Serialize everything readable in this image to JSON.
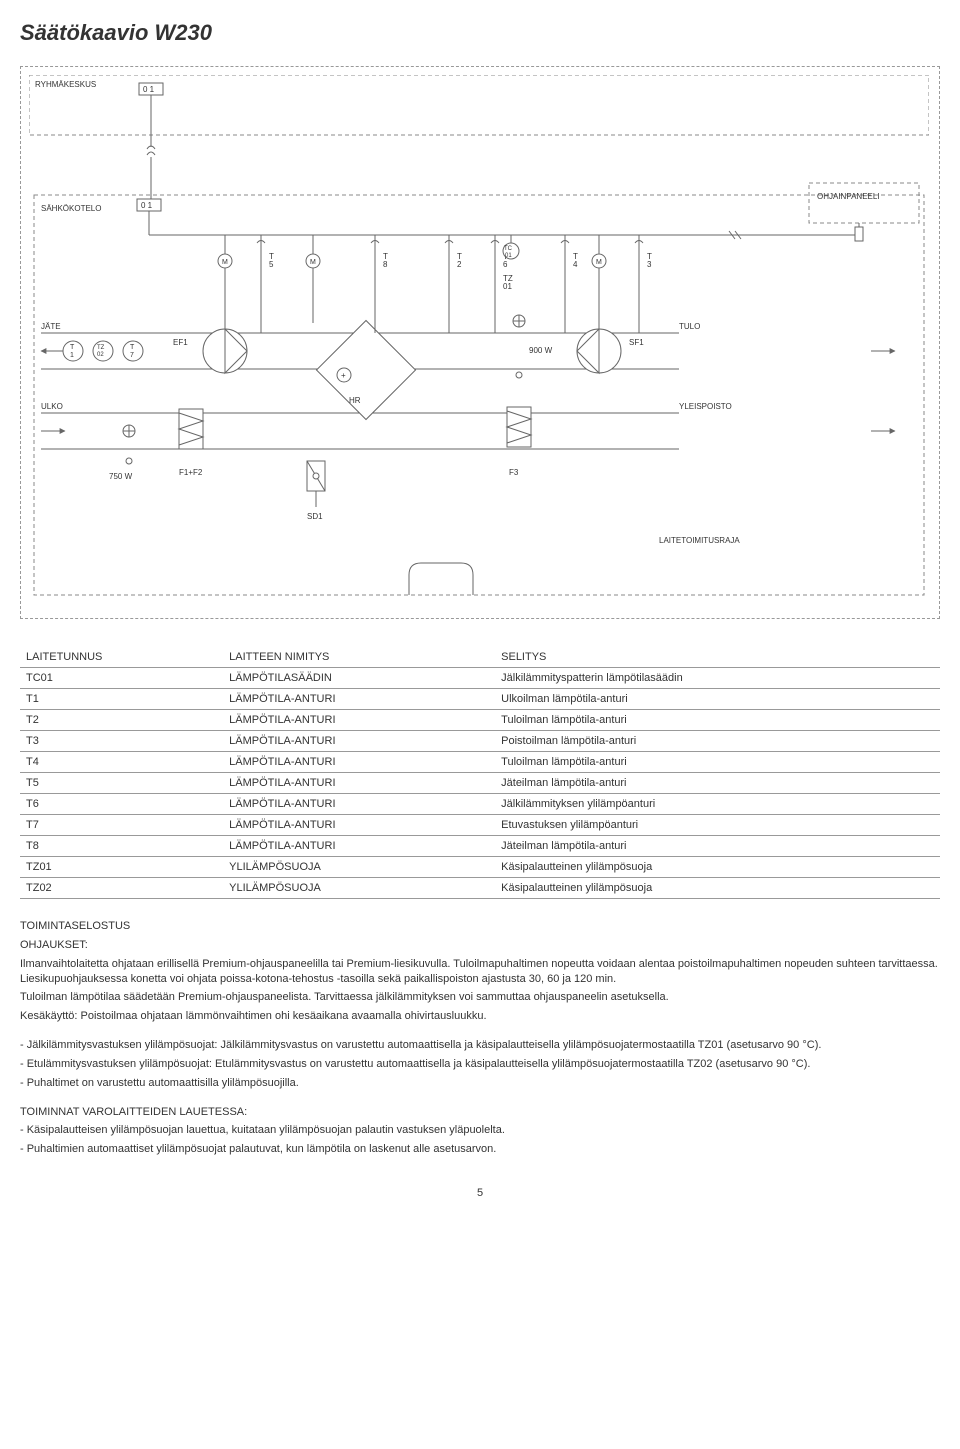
{
  "title": "Säätökaavio W230",
  "labels": {
    "ryhmakeskus": "RYHMÄKESKUS",
    "sahkokotelo": "SÄHKÖKOTELO",
    "ohjainpaneeli": "OHJAINPANEELI",
    "jate": "JÄTE",
    "tulo": "TULO",
    "ulko": "ULKO",
    "yleispoisto": "YLEISPOISTO",
    "ef1": "EF1",
    "sf1": "SF1",
    "f1f2": "F1+F2",
    "f3": "F3",
    "sd1": "SD1",
    "hr": "HR",
    "laitetoimitusraja": "LAITETOIMITUSRAJA",
    "p750": "750 W",
    "p900": "900 W",
    "t1": "T\n1",
    "t2": "T\n2",
    "t3": "T\n3",
    "t4": "T\n4",
    "t5": "T\n5",
    "t6": "T\n6",
    "t7": "T\n7",
    "t8": "T\n8",
    "tz01": "TZ\n01",
    "tz02": "TZ\n02",
    "tc01": "TC\n01",
    "m": "M",
    "zeroone": "0 1",
    "plus": "+"
  },
  "table": {
    "headers": [
      "LAITETUNNUS",
      "LAITTEEN NIMITYS",
      "SELITYS"
    ],
    "rows": [
      [
        "TC01",
        "LÄMPÖTILASÄÄDIN",
        "Jälkilämmityspatterin lämpötilasäädin"
      ],
      [
        "T1",
        "LÄMPÖTILA-ANTURI",
        "Ulkoilman lämpötila-anturi"
      ],
      [
        "T2",
        "LÄMPÖTILA-ANTURI",
        "Tuloilman lämpötila-anturi"
      ],
      [
        "T3",
        "LÄMPÖTILA-ANTURI",
        "Poistoilman lämpötila-anturi"
      ],
      [
        "T4",
        "LÄMPÖTILA-ANTURI",
        "Tuloilman lämpötila-anturi"
      ],
      [
        "T5",
        "LÄMPÖTILA-ANTURI",
        "Jäteilman lämpötila-anturi"
      ],
      [
        "T6",
        "LÄMPÖTILA-ANTURI",
        "Jälkilämmityksen ylilämpöanturi"
      ],
      [
        "T7",
        "LÄMPÖTILA-ANTURI",
        "Etuvastuksen ylilämpöanturi"
      ],
      [
        "T8",
        "LÄMPÖTILA-ANTURI",
        "Jäteilman lämpötila-anturi"
      ],
      [
        "TZ01",
        "YLILÄMPÖSUOJA",
        "Käsipalautteinen ylilämpösuoja"
      ],
      [
        "TZ02",
        "YLILÄMPÖSUOJA",
        "Käsipalautteinen ylilämpösuoja"
      ]
    ]
  },
  "sections": {
    "s1_title": "TOIMINTASELOSTUS",
    "s1_sub": "OHJAUKSET:",
    "s1_p1": "Ilmanvaihtolaitetta ohjataan erillisellä Premium-ohjauspaneelilla tai Premium-liesikuvulla. Tuloilmapuhaltimen nopeutta voidaan alentaa poistoilmapuhaltimen nopeuden suhteen tarvittaessa. Liesikupuohjauksessa konetta voi ohjata poissa-kotona-tehostus -tasoilla sekä paikallispoiston ajastusta 30, 60 ja 120 min.",
    "s1_p2": "Tuloilman lämpötilaa säädetään Premium-ohjauspaneelista. Tarvittaessa jälkilämmityksen voi sammuttaa ohjauspaneelin asetuksella.",
    "s1_p3": "Kesäkäyttö: Poistoilmaa ohjataan lämmönvaihtimen ohi kesäaikana avaamalla ohivirtausluukku.",
    "s2_l1": "- Jälkilämmitysvastuksen ylilämpösuojat: Jälkilämmitysvastus on varustettu automaattisella ja käsipalautteisella ylilämpösuojatermostaatilla TZ01 (asetusarvo 90 °C).",
    "s2_l2": "- Etulämmitysvastuksen ylilämpösuojat: Etulämmitysvastus on varustettu automaattisella ja käsipalautteisella ylilämpösuojatermostaatilla TZ02 (asetusarvo 90 °C).",
    "s2_l3": "- Puhaltimet on varustettu automaattisilla ylilämpösuojilla.",
    "s3_title": "TOIMINNAT VAROLAITTEIDEN LAUETESSA:",
    "s3_l1": "- Käsipalautteisen ylilämpösuojan lauettua, kuitataan ylilämpösuojan palautin vastuksen yläpuolelta.",
    "s3_l2": "- Puhaltimien automaattiset ylilämpösuojat palautuvat, kun lämpötila on laskenut alle asetusarvon."
  },
  "page_num": "5",
  "colors": {
    "line": "#666666",
    "dash": "#888888",
    "arrow": "#666666",
    "text": "#333333",
    "bg": "#ffffff"
  }
}
